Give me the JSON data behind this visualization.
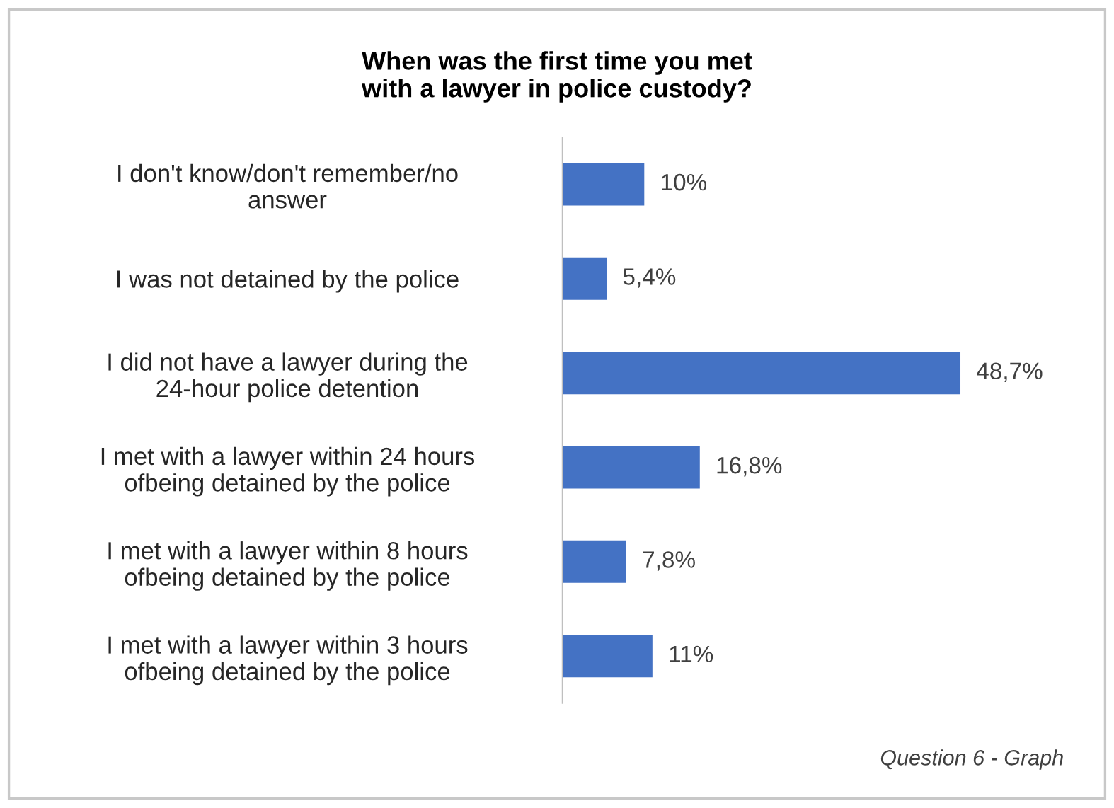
{
  "chart_data": {
    "type": "bar",
    "orientation": "horizontal",
    "title": "When was the first time you met\nwith a lawyer in police custody?",
    "categories": [
      "I don't know/don't remember/no\nanswer",
      "I was not detained by the police",
      "I did not have a lawyer during the\n24-hour police detention",
      "I met with a lawyer within 24 hours\nofbeing detained by the police",
      "I met with a lawyer within 8 hours\nofbeing detained by the police",
      "I met with a lawyer within 3 hours\nofbeing detained by the police"
    ],
    "values": [
      10,
      5.4,
      48.7,
      16.8,
      7.8,
      11
    ],
    "value_labels": [
      "10%",
      "5,4%",
      "48,7%",
      "16,8%",
      "7,8%",
      "11%"
    ],
    "color": "#4472c4",
    "grid": false,
    "annotations": [
      "Question 6 - Graph"
    ]
  }
}
